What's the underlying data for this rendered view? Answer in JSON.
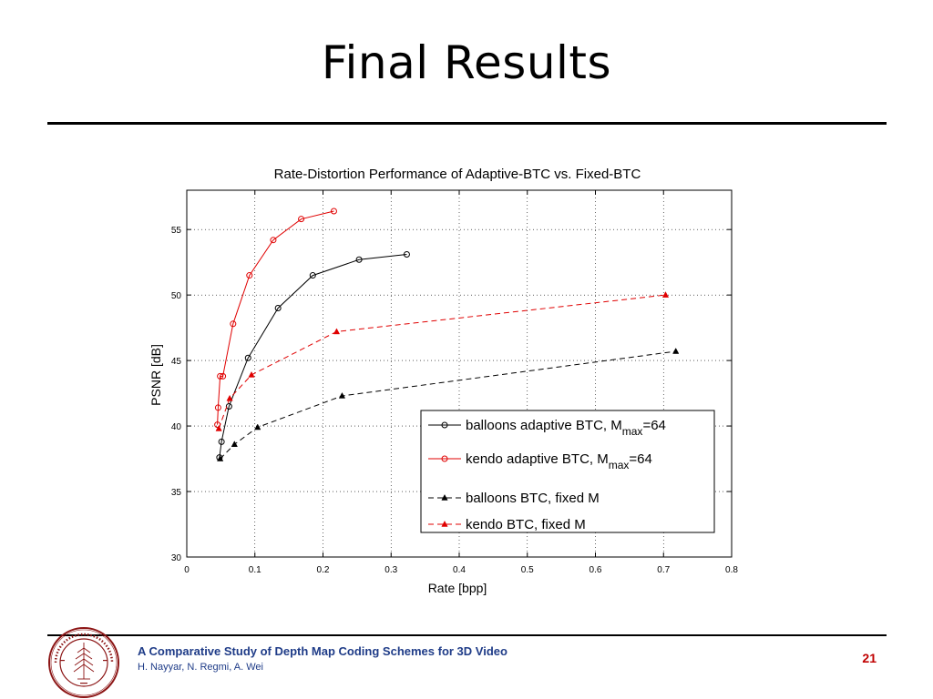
{
  "slide": {
    "title": "Final Results",
    "footer_title": "A Comparative Study of Depth Map Coding Schemes for 3D Video",
    "footer_authors": "H. Nayyar, N. Regmi, A. Wei",
    "page_number": "21",
    "seal_text": "LELAND STANFORD JUNIOR UNIVERSITY 1891"
  },
  "colors": {
    "footer_text": "#1f3c88",
    "page_number": "#c00000",
    "seal": "#8c1515",
    "balloons": "#000000",
    "kendo": "#e00000"
  },
  "chart_data": {
    "type": "line",
    "title": "Rate-Distortion Performance of Adaptive-BTC vs. Fixed-BTC",
    "xlabel": "Rate [bpp]",
    "ylabel": "PSNR [dB]",
    "xlim": [
      0,
      0.8
    ],
    "ylim": [
      30,
      58
    ],
    "xticks": [
      0,
      0.1,
      0.2,
      0.3,
      0.4,
      0.5,
      0.6,
      0.7,
      0.8
    ],
    "xtick_labels": [
      "0",
      "0.1",
      "0.2",
      "0.3",
      "0.4",
      "0.5",
      "0.6",
      "0.7",
      "0.8"
    ],
    "yticks": [
      30,
      35,
      40,
      45,
      50,
      55
    ],
    "ytick_labels": [
      "30",
      "35",
      "40",
      "45",
      "50",
      "55"
    ],
    "grid": true,
    "legend_position": "lower-right",
    "series": [
      {
        "name": "balloons adaptive BTC, M",
        "name_sub": "max",
        "name_suffix": "=64",
        "color": "#000000",
        "dash": "solid",
        "marker": "circle",
        "x": [
          0.048,
          0.051,
          0.062,
          0.09,
          0.134,
          0.185,
          0.253,
          0.323
        ],
        "y": [
          37.6,
          38.8,
          41.5,
          45.2,
          49.0,
          51.5,
          52.7,
          53.1
        ]
      },
      {
        "name": "kendo adaptive BTC, M",
        "name_sub": "max",
        "name_suffix": "=64",
        "color": "#e00000",
        "dash": "solid",
        "marker": "circle",
        "x": [
          0.045,
          0.046,
          0.049,
          0.053,
          0.068,
          0.092,
          0.127,
          0.168,
          0.216
        ],
        "y": [
          40.1,
          41.4,
          43.8,
          43.8,
          47.8,
          51.5,
          54.2,
          55.8,
          56.4
        ]
      },
      {
        "name": "balloons BTC, fixed M",
        "name_sub": "",
        "name_suffix": "",
        "color": "#000000",
        "dash": "dashed",
        "marker": "triangle",
        "x": [
          0.049,
          0.07,
          0.104,
          0.228,
          0.718
        ],
        "y": [
          37.5,
          38.6,
          39.9,
          42.3,
          45.7
        ]
      },
      {
        "name": "kendo BTC, fixed M",
        "name_sub": "",
        "name_suffix": "",
        "color": "#e00000",
        "dash": "dashed",
        "marker": "triangle",
        "x": [
          0.047,
          0.063,
          0.095,
          0.22,
          0.703
        ],
        "y": [
          39.8,
          42.1,
          43.9,
          47.2,
          50.0
        ]
      }
    ]
  }
}
